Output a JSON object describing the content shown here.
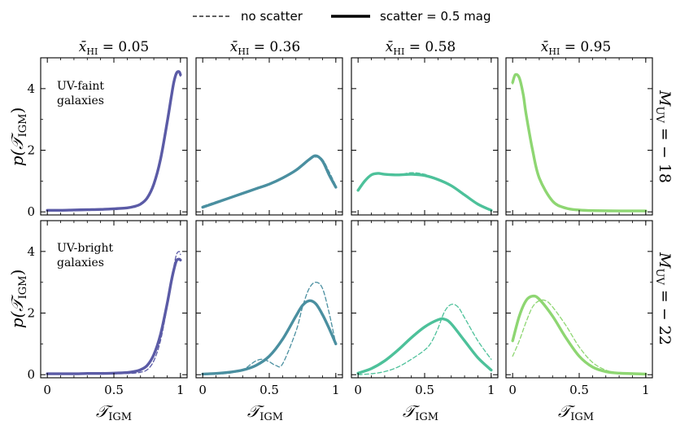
{
  "chart_data": {
    "type": "line",
    "legend": {
      "placement": "top-center",
      "entries": [
        {
          "label": "no scatter",
          "style": "dashed"
        },
        {
          "label": "scatter = 0.5 mag",
          "style": "solid"
        }
      ]
    },
    "x_axis": {
      "label_main": "𝒯",
      "label_sub": "IGM",
      "range": [
        -0.05,
        1.05
      ],
      "ticks": [
        0,
        0.5,
        1
      ],
      "tick_labels": [
        "0",
        "0.5",
        "1"
      ]
    },
    "y_axis": {
      "label": "p(𝒯IGM)",
      "label_pre": "p(",
      "label_main": "𝒯",
      "label_sub": "IGM",
      "label_post": ")",
      "range": [
        -0.1,
        5.0
      ],
      "ticks": [
        0,
        2,
        4
      ],
      "tick_labels": [
        "0",
        "2",
        "4"
      ]
    },
    "columns": [
      {
        "title_main": "x̄",
        "title_sub": "HI",
        "title_rest": " = 0.05"
      },
      {
        "title_main": "x̄",
        "title_sub": "HI",
        "title_rest": " = 0.36"
      },
      {
        "title_main": "x̄",
        "title_sub": "HI",
        "title_rest": " = 0.58"
      },
      {
        "title_main": "x̄",
        "title_sub": "HI",
        "title_rest": " = 0.95"
      }
    ],
    "rows": [
      {
        "label_main": "M",
        "label_sub": "UV",
        "label_rest": " = − 18",
        "annotation": [
          "UV-faint",
          "galaxies"
        ]
      },
      {
        "label_main": "M",
        "label_sub": "UV",
        "label_rest": " = − 22",
        "annotation": [
          "UV-bright",
          "galaxies"
        ]
      }
    ],
    "colors": [
      "#5b5ba6",
      "#4a8fa0",
      "#4dc19a",
      "#8ed672"
    ],
    "panels": [
      {
        "row": 0,
        "col": 0,
        "series": [
          {
            "name": "scatter = 0.5 mag",
            "style": "solid",
            "x": [
              0,
              0.1,
              0.2,
              0.3,
              0.4,
              0.5,
              0.6,
              0.65,
              0.7,
              0.75,
              0.8,
              0.85,
              0.9,
              0.93,
              0.95,
              0.97,
              0.99,
              1.0
            ],
            "y": [
              0.05,
              0.05,
              0.06,
              0.07,
              0.08,
              0.1,
              0.13,
              0.17,
              0.25,
              0.45,
              0.9,
              1.7,
              2.9,
              3.7,
              4.2,
              4.5,
              4.55,
              4.45
            ]
          },
          {
            "name": "no scatter",
            "style": "dashed",
            "x": [
              0,
              0.1,
              0.2,
              0.3,
              0.4,
              0.5,
              0.6,
              0.65,
              0.7,
              0.75,
              0.8,
              0.85,
              0.9,
              0.93,
              0.95,
              0.97,
              0.99,
              1.0
            ],
            "y": [
              0.05,
              0.05,
              0.06,
              0.07,
              0.08,
              0.1,
              0.13,
              0.17,
              0.24,
              0.43,
              0.88,
              1.68,
              2.85,
              3.65,
              4.15,
              4.45,
              4.5,
              4.4
            ]
          }
        ]
      },
      {
        "row": 0,
        "col": 1,
        "series": [
          {
            "name": "scatter = 0.5 mag",
            "style": "solid",
            "x": [
              0,
              0.1,
              0.2,
              0.3,
              0.4,
              0.5,
              0.6,
              0.7,
              0.8,
              0.85,
              0.9,
              0.95,
              1.0
            ],
            "y": [
              0.15,
              0.3,
              0.45,
              0.6,
              0.75,
              0.9,
              1.1,
              1.35,
              1.7,
              1.82,
              1.65,
              1.2,
              0.8
            ]
          },
          {
            "name": "no scatter",
            "style": "dashed",
            "x": [
              0,
              0.1,
              0.2,
              0.3,
              0.4,
              0.5,
              0.6,
              0.7,
              0.8,
              0.85,
              0.9,
              0.95,
              1.0
            ],
            "y": [
              0.18,
              0.33,
              0.47,
              0.62,
              0.77,
              0.92,
              1.12,
              1.38,
              1.7,
              1.78,
              1.7,
              1.3,
              0.85
            ]
          }
        ]
      },
      {
        "row": 0,
        "col": 2,
        "series": [
          {
            "name": "scatter = 0.5 mag",
            "style": "solid",
            "x": [
              0,
              0.05,
              0.1,
              0.15,
              0.2,
              0.3,
              0.4,
              0.5,
              0.6,
              0.7,
              0.8,
              0.9,
              1.0
            ],
            "y": [
              0.7,
              1.0,
              1.2,
              1.25,
              1.22,
              1.2,
              1.22,
              1.18,
              1.05,
              0.85,
              0.55,
              0.25,
              0.05
            ]
          },
          {
            "name": "no scatter",
            "style": "dashed",
            "x": [
              0,
              0.05,
              0.1,
              0.15,
              0.2,
              0.3,
              0.4,
              0.5,
              0.6,
              0.7,
              0.8,
              0.9,
              1.0
            ],
            "y": [
              0.72,
              1.02,
              1.2,
              1.25,
              1.22,
              1.2,
              1.27,
              1.22,
              1.05,
              0.85,
              0.55,
              0.25,
              0.05
            ]
          }
        ]
      },
      {
        "row": 0,
        "col": 3,
        "series": [
          {
            "name": "scatter = 0.5 mag",
            "style": "solid",
            "x": [
              0,
              0.02,
              0.05,
              0.08,
              0.1,
              0.15,
              0.2,
              0.3,
              0.4,
              0.5,
              0.6,
              0.8,
              1.0
            ],
            "y": [
              4.2,
              4.45,
              4.35,
              3.8,
              3.2,
              2.0,
              1.1,
              0.35,
              0.12,
              0.06,
              0.04,
              0.03,
              0.03
            ]
          },
          {
            "name": "no scatter",
            "style": "dashed",
            "x": [
              0,
              0.02,
              0.05,
              0.08,
              0.1,
              0.15,
              0.2,
              0.3,
              0.4,
              0.5,
              0.6,
              0.8,
              1.0
            ],
            "y": [
              4.15,
              4.42,
              4.33,
              3.8,
              3.22,
              2.02,
              1.12,
              0.36,
              0.12,
              0.06,
              0.04,
              0.03,
              0.03
            ]
          }
        ]
      },
      {
        "row": 1,
        "col": 0,
        "series": [
          {
            "name": "scatter = 0.5 mag",
            "style": "solid",
            "x": [
              0,
              0.1,
              0.2,
              0.3,
              0.4,
              0.5,
              0.6,
              0.65,
              0.7,
              0.75,
              0.8,
              0.85,
              0.9,
              0.93,
              0.95,
              0.97,
              0.99,
              1.0
            ],
            "y": [
              0.03,
              0.03,
              0.03,
              0.04,
              0.04,
              0.05,
              0.07,
              0.1,
              0.16,
              0.3,
              0.65,
              1.3,
              2.3,
              3.0,
              3.4,
              3.7,
              3.75,
              3.72
            ]
          },
          {
            "name": "no scatter",
            "style": "dashed",
            "x": [
              0,
              0.1,
              0.2,
              0.3,
              0.4,
              0.5,
              0.6,
              0.65,
              0.7,
              0.75,
              0.8,
              0.85,
              0.9,
              0.93,
              0.95,
              0.97,
              0.99,
              1.0
            ],
            "y": [
              0.03,
              0.03,
              0.03,
              0.03,
              0.03,
              0.03,
              0.04,
              0.05,
              0.08,
              0.16,
              0.45,
              1.1,
              2.2,
              3.0,
              3.5,
              3.9,
              4.0,
              3.9
            ]
          }
        ]
      },
      {
        "row": 1,
        "col": 1,
        "series": [
          {
            "name": "scatter = 0.5 mag",
            "style": "solid",
            "x": [
              0,
              0.1,
              0.2,
              0.3,
              0.4,
              0.5,
              0.6,
              0.7,
              0.75,
              0.8,
              0.85,
              0.9,
              0.95,
              1.0
            ],
            "y": [
              0.02,
              0.04,
              0.08,
              0.15,
              0.3,
              0.6,
              1.15,
              1.9,
              2.25,
              2.4,
              2.3,
              1.95,
              1.5,
              1.0
            ]
          },
          {
            "name": "no scatter",
            "style": "dashed",
            "x": [
              0,
              0.1,
              0.2,
              0.3,
              0.35,
              0.4,
              0.45,
              0.5,
              0.55,
              0.6,
              0.7,
              0.75,
              0.8,
              0.85,
              0.9,
              0.95,
              1.0
            ],
            "y": [
              0.01,
              0.02,
              0.05,
              0.15,
              0.3,
              0.45,
              0.5,
              0.42,
              0.3,
              0.35,
              1.4,
              2.2,
              2.8,
              3.0,
              2.8,
              2.0,
              1.0
            ]
          }
        ]
      },
      {
        "row": 1,
        "col": 2,
        "series": [
          {
            "name": "scatter = 0.5 mag",
            "style": "solid",
            "x": [
              0,
              0.1,
              0.2,
              0.3,
              0.4,
              0.5,
              0.6,
              0.65,
              0.7,
              0.8,
              0.9,
              1.0
            ],
            "y": [
              0.05,
              0.2,
              0.45,
              0.8,
              1.2,
              1.55,
              1.78,
              1.8,
              1.65,
              1.1,
              0.55,
              0.15
            ]
          },
          {
            "name": "no scatter",
            "style": "dashed",
            "x": [
              0,
              0.1,
              0.2,
              0.3,
              0.4,
              0.5,
              0.55,
              0.6,
              0.65,
              0.7,
              0.75,
              0.8,
              0.9,
              1.0
            ],
            "y": [
              0.0,
              0.03,
              0.1,
              0.25,
              0.5,
              0.8,
              1.05,
              1.5,
              2.05,
              2.28,
              2.2,
              1.85,
              1.1,
              0.5
            ]
          }
        ]
      },
      {
        "row": 1,
        "col": 3,
        "series": [
          {
            "name": "scatter = 0.5 mag",
            "style": "solid",
            "x": [
              0,
              0.05,
              0.1,
              0.15,
              0.2,
              0.3,
              0.4,
              0.5,
              0.6,
              0.7,
              0.8,
              1.0
            ],
            "y": [
              1.1,
              1.9,
              2.4,
              2.55,
              2.45,
              1.9,
              1.2,
              0.6,
              0.25,
              0.1,
              0.05,
              0.02
            ]
          },
          {
            "name": "no scatter",
            "style": "dashed",
            "x": [
              0,
              0.05,
              0.1,
              0.15,
              0.2,
              0.25,
              0.3,
              0.4,
              0.5,
              0.6,
              0.7,
              0.8,
              1.0
            ],
            "y": [
              0.6,
              1.1,
              1.7,
              2.2,
              2.4,
              2.4,
              2.2,
              1.6,
              0.9,
              0.4,
              0.15,
              0.06,
              0.02
            ]
          }
        ]
      }
    ]
  }
}
